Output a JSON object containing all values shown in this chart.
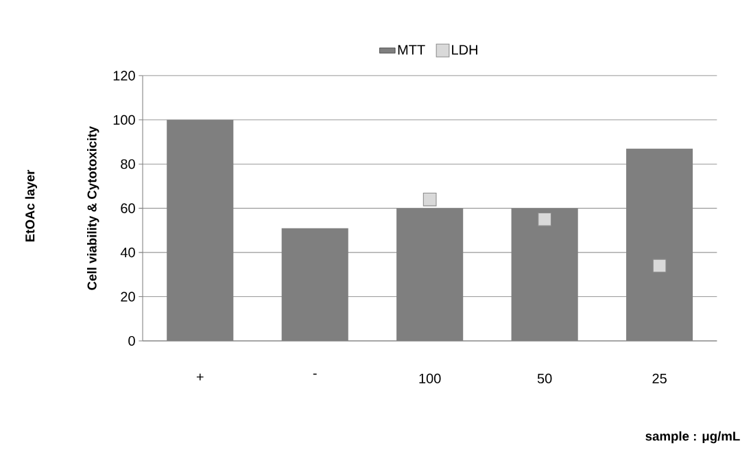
{
  "chart_data": {
    "type": "bar",
    "ylabel": "Cell viability & Cytotoxicity",
    "xlabel": "sample : μg/mL",
    "annotations": [
      "EtOAc layer"
    ],
    "categories": [
      "+",
      "-",
      "100",
      "50",
      "25"
    ],
    "series": [
      {
        "name": "MTT",
        "color": "#7f7f7f",
        "values": [
          100,
          51,
          60,
          60,
          87
        ]
      },
      {
        "name": "LDH",
        "type": "scatter",
        "color": "#d9d9d9",
        "x": [
          "100",
          "50",
          "25"
        ],
        "values": [
          64,
          55,
          34
        ]
      }
    ],
    "ylim": [
      0,
      120
    ],
    "yticks": [
      0,
      20,
      40,
      60,
      80,
      100,
      120
    ],
    "grid": "y",
    "legend": "top",
    "marker": "square"
  }
}
